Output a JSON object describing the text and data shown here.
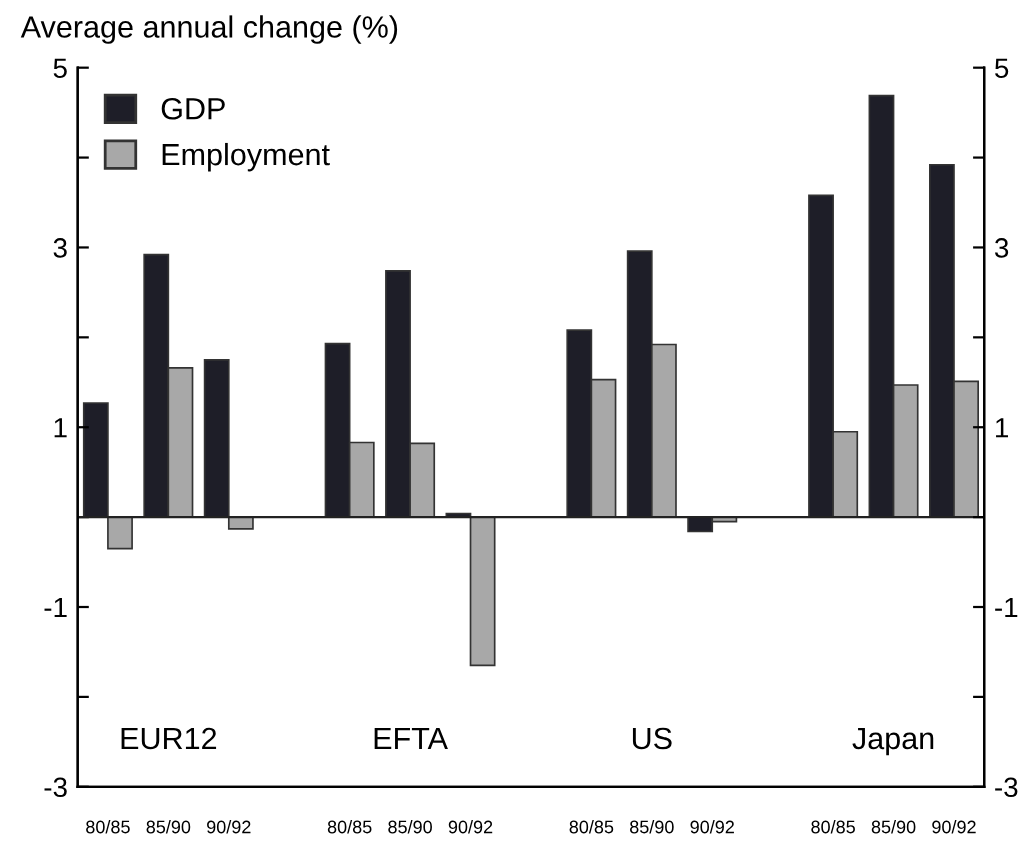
{
  "chart_data": {
    "type": "bar",
    "ylabel": "Average annual change (%)",
    "categories": [
      "80/85",
      "85/90",
      "90/92",
      null,
      "80/85",
      "85/90",
      "90/92",
      null,
      "80/85",
      "85/90",
      "90/92",
      null,
      "80/85",
      "85/90",
      "90/92"
    ],
    "series": [
      {
        "name": "GDP",
        "color": "#1e1e28",
        "values": [
          1.27,
          2.92,
          1.75,
          null,
          1.93,
          2.74,
          0.04,
          null,
          2.08,
          2.96,
          -0.16,
          null,
          3.58,
          4.69,
          3.92
        ]
      },
      {
        "name": "Employment",
        "color": "#a8a8a8",
        "values": [
          -0.35,
          1.66,
          -0.13,
          null,
          0.83,
          0.82,
          -1.65,
          null,
          1.53,
          1.92,
          -0.05,
          null,
          0.95,
          1.47,
          1.51
        ]
      }
    ],
    "annotations": [
      "EUR12",
      "EFTA",
      "US",
      "Japan"
    ],
    "ylim": [
      -3,
      5
    ],
    "yticks": [
      -3,
      {
        "value": -2,
        "label": null
      },
      -1,
      {
        "value": 0,
        "label": null
      },
      1,
      {
        "value": 2,
        "label": null
      },
      3,
      {
        "value": 4,
        "label": null
      },
      5
    ],
    "y2lim": [
      -3,
      5
    ],
    "y2ticks": [
      -3,
      {
        "value": -2,
        "label": null
      },
      -1,
      {
        "value": 0,
        "label": null
      },
      1,
      {
        "value": 2,
        "label": null
      },
      3,
      {
        "value": 4,
        "label": null
      },
      5
    ],
    "ref_lines": [
      {
        "axis": "y",
        "value": 0,
        "color": "#222222"
      }
    ],
    "legend": "top left"
  }
}
